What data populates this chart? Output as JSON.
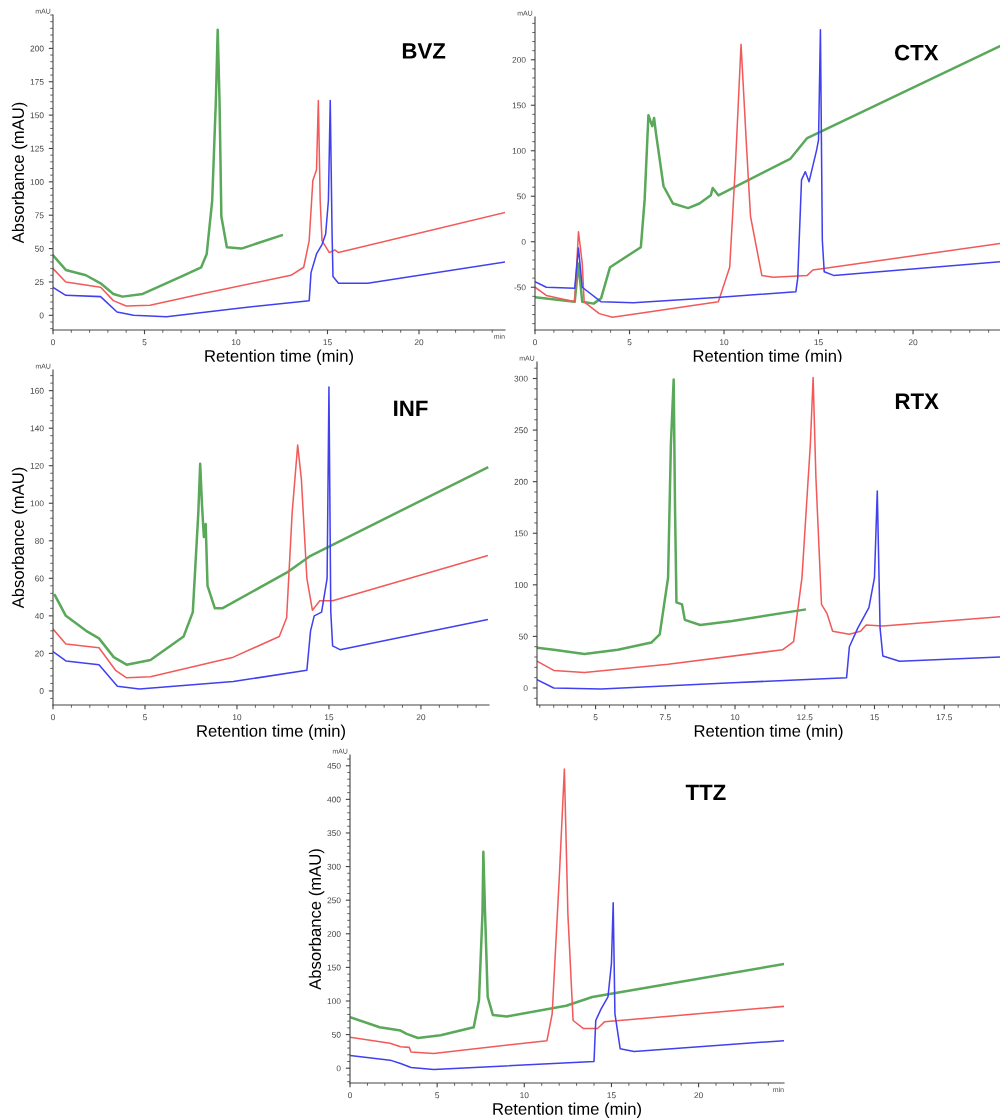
{
  "chart_data": [
    {
      "type": "line",
      "title": "BVZ",
      "xlabel": "Retention time (min)",
      "ylabel": "Absorbance (mAU)",
      "annotations": [
        "mAU",
        "min"
      ],
      "xlim": [
        0,
        24.7
      ],
      "xticks": [
        0,
        5,
        10,
        15,
        20
      ],
      "ylim": [
        -11,
        225
      ],
      "yticks": [
        0,
        25,
        50,
        75,
        100,
        125,
        150,
        175,
        200
      ],
      "grid": false,
      "legend": false,
      "series": [
        {
          "color": "#5aa85a",
          "x": [
            0,
            0.7,
            1.8,
            2.6,
            3.3,
            3.8,
            4.9,
            7.0,
            8.1,
            8.4,
            8.7,
            8.9,
            9.0,
            9.1,
            9.2,
            9.5,
            10.3,
            12.5
          ],
          "values": [
            45,
            34,
            30,
            24,
            16,
            14,
            16,
            29,
            36,
            46,
            86,
            161,
            214,
            161,
            74,
            51,
            50,
            60
          ]
        },
        {
          "color": "#f25a5a",
          "x": [
            0,
            0.7,
            2.6,
            3.3,
            4.0,
            5.3,
            8.1,
            13,
            13.7,
            14.0,
            14.2,
            14.4,
            14.5,
            14.6,
            14.7,
            15.1,
            15.4,
            15.6,
            24.7
          ],
          "values": [
            35,
            25,
            21,
            11,
            7,
            7.5,
            16,
            30,
            36,
            56,
            101,
            109,
            161,
            86,
            56,
            47,
            49,
            47,
            77
          ]
        },
        {
          "color": "#4040f0",
          "x": [
            0,
            0.7,
            2.6,
            3.5,
            4.4,
            6.2,
            9.9,
            14.0,
            14.1,
            14.4,
            14.7,
            14.9,
            15.05,
            15.15,
            15.25,
            15.3,
            15.6,
            17.2,
            24.7
          ],
          "values": [
            21,
            15,
            14,
            2.5,
            0,
            -1,
            5,
            11,
            32,
            46,
            53,
            61,
            86,
            161,
            61,
            29,
            24,
            24,
            40
          ]
        }
      ]
    },
    {
      "type": "line",
      "title": "CTX",
      "xlabel": "Retention time (min)",
      "annotations": [
        "mAU"
      ],
      "xlim": [
        0,
        24.6
      ],
      "xticks": [
        0,
        5,
        10,
        15,
        20
      ],
      "ylim": [
        -97,
        247
      ],
      "yticks": [
        {
          "value": -50,
          "label": "-50"
        },
        0,
        50,
        100,
        150,
        200
      ],
      "grid": false,
      "legend": false,
      "series": [
        {
          "color": "#5aa85a",
          "x": [
            0,
            2.1,
            2.3,
            2.5,
            3.1,
            3.5,
            3.97,
            5.6,
            5.8,
            6.0,
            6.2,
            6.3,
            6.4,
            6.8,
            7.3,
            8.1,
            8.7,
            9.3,
            9.4,
            9.7,
            13.5,
            14.4,
            24.6
          ],
          "values": [
            -61,
            -66,
            -24,
            -66,
            -68,
            -62,
            -28,
            -6,
            46,
            139,
            127,
            136,
            119,
            61,
            42,
            37,
            42,
            51,
            59,
            51,
            91,
            114,
            215
          ]
        },
        {
          "color": "#f25a5a",
          "x": [
            0,
            0.6,
            2.1,
            2.3,
            2.5,
            2.6,
            3.4,
            4.1,
            6.1,
            9.7,
            10.3,
            10.6,
            10.9,
            11.2,
            11.4,
            12.0,
            12.6,
            14.4,
            14.7,
            24.6
          ],
          "values": [
            -50,
            -59,
            -66,
            11,
            -24,
            -66,
            -79,
            -83,
            -77,
            -66,
            -28,
            83,
            217,
            101,
            28,
            -37,
            -39,
            -37,
            -31,
            -2
          ]
        },
        {
          "color": "#4040f0",
          "x": [
            0,
            0.6,
            2.1,
            2.3,
            2.5,
            3.5,
            5.2,
            9.8,
            13.8,
            13.9,
            14.1,
            14.3,
            14.5,
            14.9,
            15.0,
            15.1,
            15.2,
            15.3,
            15.8,
            24.6
          ],
          "values": [
            -44,
            -50,
            -51,
            -7,
            -50,
            -66,
            -67,
            -61,
            -55,
            -40,
            68,
            77,
            66,
            101,
            112,
            233,
            2,
            -33,
            -37,
            -22
          ]
        }
      ]
    },
    {
      "type": "line",
      "title": "INF",
      "xlabel": "Retention time (min)",
      "ylabel": "Absorbance (mAU)",
      "annotations": [
        "mAU"
      ],
      "xlim": [
        0,
        23.7
      ],
      "xticks": [
        0,
        5,
        10,
        15,
        20
      ],
      "ylim": [
        -7.5,
        171
      ],
      "yticks": [
        0,
        20,
        40,
        60,
        80,
        100,
        120,
        140,
        160
      ],
      "grid": false,
      "legend": false,
      "series": [
        {
          "color": "#5aa85a",
          "x": [
            0.1,
            0.7,
            1.8,
            2.5,
            3.3,
            4.0,
            5.3,
            7.1,
            7.6,
            7.9,
            8.0,
            8.1,
            8.2,
            8.3,
            8.4,
            8.8,
            9.2,
            12.7,
            14.0,
            23.6
          ],
          "values": [
            51,
            40,
            32,
            28,
            18,
            14,
            16.5,
            29,
            42,
            95,
            121,
            99,
            82,
            89,
            56,
            44,
            44,
            63,
            72,
            119
          ]
        },
        {
          "color": "#f25a5a",
          "x": [
            0,
            0.7,
            2.5,
            3.4,
            4.0,
            5.3,
            9.8,
            12.3,
            12.7,
            13.0,
            13.3,
            13.5,
            13.8,
            14.1,
            14.5,
            14.9,
            15.2,
            23.6
          ],
          "values": [
            33,
            25,
            23,
            11,
            7,
            7.5,
            18,
            29,
            39,
            95,
            131,
            113,
            60,
            43,
            48,
            48,
            48,
            72
          ]
        },
        {
          "color": "#4040f0",
          "x": [
            0,
            0.7,
            2.5,
            3.5,
            4.7,
            9.8,
            13.8,
            14.0,
            14.2,
            14.6,
            14.9,
            15.0,
            15.1,
            15.2,
            15.6,
            23.6
          ],
          "values": [
            21,
            16,
            14,
            2.5,
            1,
            5,
            11,
            32,
            40,
            42,
            60,
            162,
            42,
            24,
            22,
            38
          ]
        }
      ]
    },
    {
      "type": "line",
      "title": "RTX",
      "xlabel": "Retention time (min)",
      "annotations": [
        "mAU"
      ],
      "xlim": [
        2.9,
        19.5
      ],
      "xticks": [
        5,
        7.5,
        10,
        12.5,
        15,
        17.5
      ],
      "ylim": [
        -16.5,
        316
      ],
      "yticks": [
        0,
        50,
        100,
        150,
        200,
        250,
        300
      ],
      "grid": false,
      "legend": false,
      "series": [
        {
          "color": "#5aa85a",
          "x": [
            2.9,
            3.5,
            4.6,
            5.8,
            7.0,
            7.3,
            7.6,
            7.7,
            7.8,
            7.85,
            7.9,
            8.1,
            8.2,
            8.75,
            9.9,
            12.5
          ],
          "values": [
            39,
            37,
            33,
            37,
            44,
            52,
            107,
            236,
            299,
            172,
            83,
            81,
            66,
            61,
            65,
            76
          ]
        },
        {
          "color": "#f25a5a",
          "x": [
            2.9,
            3.5,
            4.6,
            7.6,
            11.7,
            12.1,
            12.4,
            12.7,
            12.8,
            12.9,
            13.1,
            13.3,
            13.5,
            14.1,
            14.5,
            14.7,
            15.3,
            19.5
          ],
          "values": [
            26,
            17,
            15,
            23,
            37,
            45,
            107,
            236,
            301,
            204,
            81,
            72,
            55,
            52,
            55,
            61,
            60,
            69
          ]
        },
        {
          "color": "#4040f0",
          "x": [
            2.9,
            3.5,
            5.2,
            9.9,
            14.0,
            14.1,
            14.4,
            14.8,
            15.0,
            15.1,
            15.2,
            15.3,
            15.9,
            19.5
          ],
          "values": [
            8,
            0,
            -1,
            5,
            10,
            40,
            58,
            78,
            107,
            191,
            58,
            31,
            26,
            30
          ]
        }
      ]
    },
    {
      "type": "line",
      "title": "TTZ",
      "xlabel": "Retention time (min)",
      "ylabel": "Absorbance (mAU)",
      "annotations": [
        "mAU",
        "min"
      ],
      "xlim": [
        0,
        24.9
      ],
      "xticks": [
        0,
        5,
        10,
        15,
        20
      ],
      "ylim": [
        -22,
        466
      ],
      "yticks": [
        0,
        50,
        100,
        150,
        200,
        250,
        300,
        350,
        400,
        450
      ],
      "grid": false,
      "legend": false,
      "series": [
        {
          "color": "#5aa85a",
          "x": [
            0,
            1.7,
            2.9,
            3.25,
            3.9,
            5.2,
            7.1,
            7.4,
            7.6,
            7.65,
            7.75,
            7.9,
            8.2,
            9.0,
            12.4,
            13.9,
            24.9
          ],
          "values": [
            76,
            61,
            56,
            51,
            45,
            49,
            61,
            101,
            230,
            322,
            230,
            106,
            79,
            77,
            93,
            106,
            155
          ]
        },
        {
          "color": "#f25a5a",
          "x": [
            0,
            2.3,
            2.9,
            3.4,
            3.5,
            4.8,
            11.3,
            11.6,
            12.0,
            12.3,
            12.5,
            12.8,
            13.4,
            14.2,
            14.6,
            24.9
          ],
          "values": [
            46,
            37,
            32,
            31,
            24,
            22,
            41,
            81,
            280,
            445,
            230,
            71,
            59,
            59,
            69,
            92
          ]
        },
        {
          "color": "#4040f0",
          "x": [
            0,
            2.3,
            2.9,
            3.5,
            4.8,
            14.0,
            14.1,
            14.4,
            14.8,
            15.0,
            15.1,
            15.2,
            15.5,
            16.3,
            24.9
          ],
          "values": [
            19,
            12,
            7,
            1,
            -2,
            10,
            71,
            88,
            106,
            156,
            246,
            81,
            29,
            25,
            41
          ]
        }
      ]
    }
  ]
}
